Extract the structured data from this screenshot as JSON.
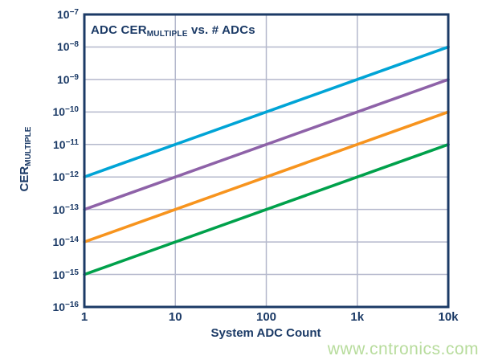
{
  "chart_data": {
    "type": "line",
    "title_parts": {
      "prefix": "ADC CER",
      "sub": "MULTIPLE",
      "suffix": " vs. # ADCs"
    },
    "xlabel": "System ADC Count",
    "ylabel_parts": {
      "prefix": "CER",
      "sub": "MULTIPLE"
    },
    "xscale": "log",
    "yscale": "log",
    "xlim": [
      1,
      10000
    ],
    "ylim": [
      1e-16,
      1e-07
    ],
    "grid": true,
    "legend": "none",
    "x_ticks": [
      {
        "value": 1,
        "label": "1"
      },
      {
        "value": 10,
        "label": "10"
      },
      {
        "value": 100,
        "label": "100"
      },
      {
        "value": 1000,
        "label": "1k"
      },
      {
        "value": 10000,
        "label": "10k"
      }
    ],
    "y_ticks": [
      {
        "value": 1e-07,
        "exp_label": "−7"
      },
      {
        "value": 1e-08,
        "exp_label": "−8"
      },
      {
        "value": 1e-09,
        "exp_label": "−9"
      },
      {
        "value": 1e-10,
        "exp_label": "−10"
      },
      {
        "value": 1e-11,
        "exp_label": "−11"
      },
      {
        "value": 1e-12,
        "exp_label": "−12"
      },
      {
        "value": 1e-13,
        "exp_label": "−13"
      },
      {
        "value": 1e-14,
        "exp_label": "−14"
      },
      {
        "value": 1e-15,
        "exp_label": "−15"
      },
      {
        "value": 1e-16,
        "exp_label": "−16"
      }
    ],
    "series": [
      {
        "name": "cyan-line",
        "color": "#00a4d6",
        "points": [
          [
            1,
            1e-12
          ],
          [
            10000,
            1e-08
          ]
        ]
      },
      {
        "name": "purple-line",
        "color": "#8e62a8",
        "points": [
          [
            1,
            1e-13
          ],
          [
            10000,
            1e-09
          ]
        ]
      },
      {
        "name": "orange-line",
        "color": "#f7941e",
        "points": [
          [
            1,
            1e-14
          ],
          [
            10000,
            1e-10
          ]
        ]
      },
      {
        "name": "green-line",
        "color": "#00a14b",
        "points": [
          [
            1,
            1e-15
          ],
          [
            10000,
            1e-11
          ]
        ]
      }
    ]
  },
  "watermark": "www.cntronics.com",
  "colors": {
    "axis": "#1b3a66",
    "grid": "#b4b8cc",
    "text": "#1b3a66",
    "watermark": "#b7dc9c",
    "background": "#ffffff"
  }
}
